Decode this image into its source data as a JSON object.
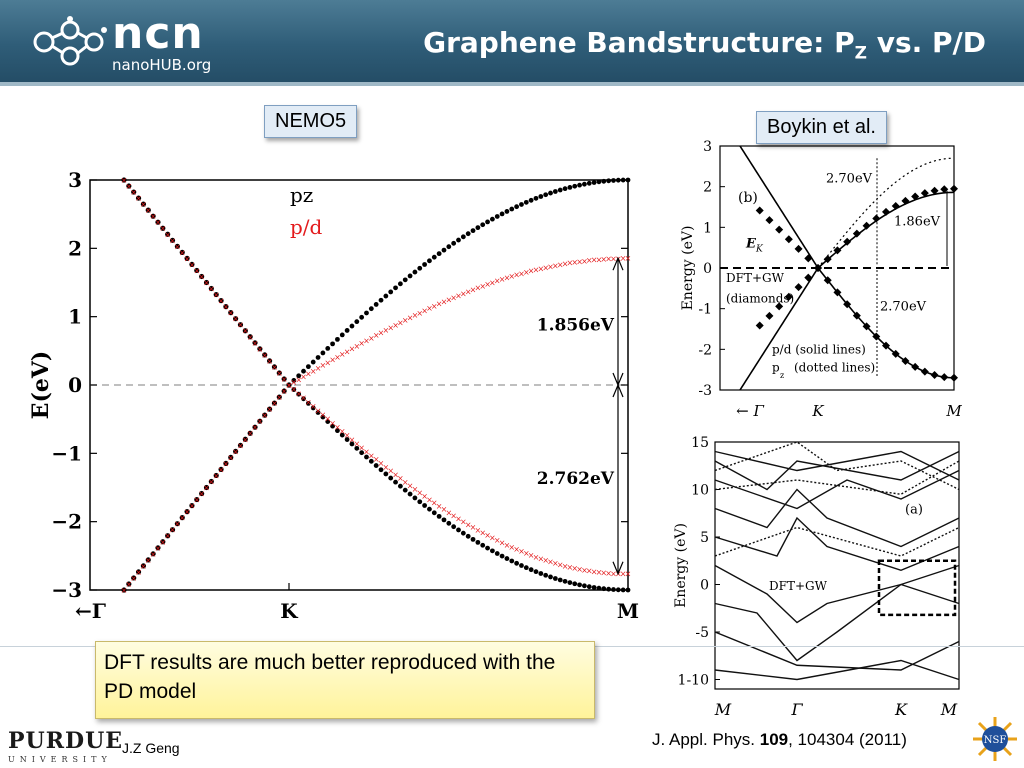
{
  "header": {
    "logo_text": "ncn",
    "logo_subtext": "nanoHUB.org",
    "title_main": "Graphene Bandstructure: P",
    "title_sub": "Z",
    "title_end": " vs. P/D"
  },
  "labels": {
    "nemo5": "NEMO5",
    "boykin": "Boykin et al."
  },
  "note": "DFT results are much better reproduced with the PD model",
  "footer": {
    "logo": "PURDUE",
    "logo_sub": "UNIVERSITY",
    "author": "J.Z Geng",
    "citation_pre": "J. Appl. Phys. ",
    "citation_vol": "109",
    "citation_post": ", 104304 (2011)",
    "nsf_text": "NSF"
  },
  "colors": {
    "header": "#2f5d78",
    "pz": "#000000",
    "pd": "#e31a1c"
  },
  "chart_data": [
    {
      "type": "scatter",
      "title": "",
      "ylabel": "E(eV)",
      "xlabel": "",
      "x_ticks": [
        "←Γ",
        "K",
        "M"
      ],
      "y_ticks": [
        "3",
        "2",
        "1",
        "0",
        "−1",
        "−2",
        "−3"
      ],
      "ylim": [
        -3,
        3
      ],
      "legend": [
        {
          "name": "pz",
          "color": "#000000"
        },
        {
          "name": "p/d",
          "color": "#e31a1c"
        }
      ],
      "legend_position": "top-center",
      "series": [
        {
          "name": "pz",
          "K_to_M_conduction_max": 3.0,
          "K_to_M_valence_min": -3.0
        },
        {
          "name": "p/d",
          "K_to_M_conduction_max": 1.856,
          "K_to_M_valence_min": -2.762
        }
      ],
      "annotations": [
        "1.856eV",
        "2.762eV"
      ],
      "gamma_edge_energy": [
        3.0,
        -3.0
      ],
      "dirac_point": {
        "k": "K",
        "energy": 0
      }
    },
    {
      "type": "line",
      "title": "",
      "panel": "(b)",
      "ylabel": "Energy (eV)",
      "x_ticks": [
        "← Γ",
        "K",
        "M"
      ],
      "y_ticks": [
        "3",
        "2",
        "1",
        "0",
        "-1",
        "-2",
        "-3"
      ],
      "ylim": [
        -3,
        3
      ],
      "annotations": [
        "2.70eV",
        "1.86eV",
        "2.70eV",
        "E",
        "K",
        "DFT+GW",
        "(diamonds)",
        "p/d (solid lines)",
        "p",
        "z",
        "(dotted lines)"
      ],
      "series": [
        {
          "name": "p/d",
          "M_conduction": 1.86,
          "M_valence": -2.7
        },
        {
          "name": "pz",
          "M_conduction": 2.7,
          "M_valence": -2.7
        },
        {
          "name": "DFT+GW",
          "M_conduction": 1.95,
          "M_valence": -2.7
        }
      ]
    },
    {
      "type": "line",
      "title": "",
      "panel": "(a)",
      "ylabel": "Energy (eV)",
      "x_ticks": [
        "M",
        "Γ",
        "K",
        "M"
      ],
      "y_ticks": [
        "15",
        "10",
        "5",
        "0",
        "-5",
        "1-10"
      ],
      "ylim": [
        -11,
        15
      ],
      "annotations": [
        "DFT+GW"
      ]
    }
  ]
}
